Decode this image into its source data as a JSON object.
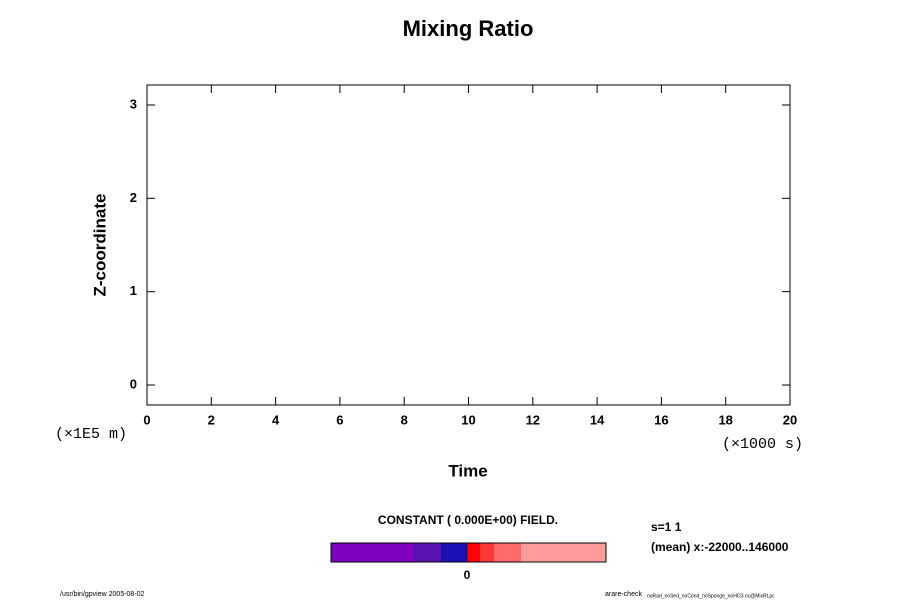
{
  "chart_data": {
    "type": "contour",
    "title": "Mixing Ratio",
    "xlabel": "Time",
    "ylabel": "Z-coordinate",
    "xunit": "(×1000 s)",
    "yunit": "(×1E5 m)",
    "xlim": [
      0,
      20
    ],
    "xticks": [
      0,
      2,
      4,
      6,
      8,
      10,
      12,
      14,
      16,
      18,
      20
    ],
    "ylim": [
      -0.214,
      3.214
    ],
    "yticks": [
      0,
      1,
      2,
      3
    ],
    "colorbar": {
      "title": "CONSTANT ( 0.000E+00) FIELD.",
      "colors": [
        "#7f00bf",
        "#5a12b0",
        "#1a10b4",
        "#ff0000",
        "#ff3737",
        "#ff6b6b",
        "#ff9b9b"
      ],
      "ticks": [
        0
      ]
    },
    "notes": [
      "s=1 1",
      "(mean) x:-22000..146000"
    ],
    "footer_left": "/usr/bin/gpview 2005-08-02",
    "footer_right": "arare-check",
    "footer_right_sub": "noRad_noSed_noCond_noSponge_noHO3.nc@MixRt,pc"
  }
}
